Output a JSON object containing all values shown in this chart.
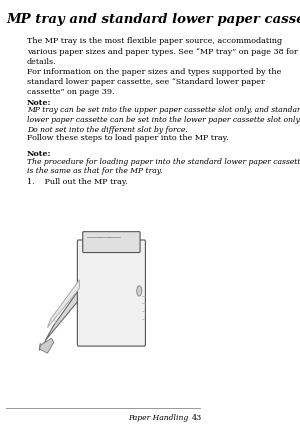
{
  "title": "MP tray and standard lower paper cassette",
  "background_color": "#ffffff",
  "text_color": "#000000",
  "footer_text": "Paper Handling",
  "footer_page": "43",
  "body_paragraphs": [
    "The MP tray is the most flexible paper source, accommodating\nvarious paper sizes and paper types. See “MP tray” on page 38 for\ndetails.",
    "For information on the paper sizes and types supported by the\nstandard lower paper cassette, see “Standard lower paper\ncassette” on page 39.",
    "Follow these steps to load paper into the MP tray."
  ],
  "note1_label": "Note:",
  "note1_text": "MP tray can be set into the upper paper cassette slot only, and standard\nlower paper cassette can be set into the lower paper cassette slot only.\nDo not set into the different slot by force.",
  "note2_label": "Note:",
  "note2_text": "The procedure for loading paper into the standard lower paper cassette\nis the same as that for the MP tray.",
  "step1": "1.    Pull out the MP tray.",
  "indent": 0.13,
  "title_fontsize": 9.5,
  "body_fontsize": 5.8,
  "note_label_fontsize": 5.8,
  "note_body_fontsize": 5.5,
  "step_fontsize": 5.8
}
